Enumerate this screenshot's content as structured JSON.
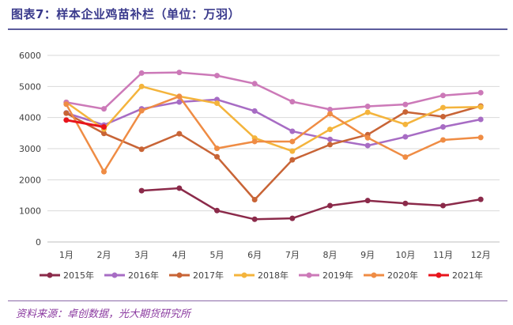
{
  "header": {
    "title": "图表7：样本企业鸡苗补栏（单位：万羽）"
  },
  "footer": {
    "source": "资料来源：卓创数据，光大期货研究所"
  },
  "chart_data": {
    "type": "line",
    "title": "",
    "xlabel": "",
    "ylabel": "",
    "categories": [
      "1月",
      "2月",
      "3月",
      "4月",
      "5月",
      "6月",
      "7月",
      "8月",
      "9月",
      "10月",
      "11月",
      "12月"
    ],
    "ylim": [
      0,
      6000
    ],
    "yticks": [
      0,
      1000,
      2000,
      3000,
      4000,
      5000,
      6000
    ],
    "grid": "horizontal",
    "legend_position": "bottom",
    "series": [
      {
        "name": "2015年",
        "color": "#8b2a4a",
        "values": [
          null,
          null,
          1650,
          1730,
          1010,
          730,
          760,
          1170,
          1330,
          1240,
          1170,
          1370
        ]
      },
      {
        "name": "2016年",
        "color": "#a76cc4",
        "values": [
          4150,
          3760,
          4280,
          4500,
          4580,
          4210,
          3560,
          3300,
          3100,
          3380,
          3700,
          3940
        ]
      },
      {
        "name": "2017年",
        "color": "#c86436",
        "values": [
          4140,
          3490,
          2980,
          3480,
          2740,
          1360,
          2640,
          3130,
          3450,
          4180,
          4030,
          4370
        ]
      },
      {
        "name": "2018年",
        "color": "#f4b43c",
        "values": [
          4490,
          3630,
          5000,
          4680,
          4460,
          3340,
          2920,
          3620,
          4170,
          3780,
          4320,
          4340
        ]
      },
      {
        "name": "2019年",
        "color": "#cc79b8",
        "values": [
          4490,
          4280,
          5430,
          5450,
          5350,
          5090,
          4510,
          4260,
          4360,
          4420,
          4710,
          4800
        ]
      },
      {
        "name": "2020年",
        "color": "#ef8c44",
        "values": [
          4430,
          2260,
          4220,
          4680,
          3010,
          3230,
          3230,
          4120,
          3350,
          2730,
          3280,
          3360
        ]
      },
      {
        "name": "2021年",
        "color": "#e8141c",
        "values": [
          3920,
          3700,
          null,
          null,
          null,
          null,
          null,
          null,
          null,
          null,
          null,
          null
        ]
      }
    ]
  }
}
